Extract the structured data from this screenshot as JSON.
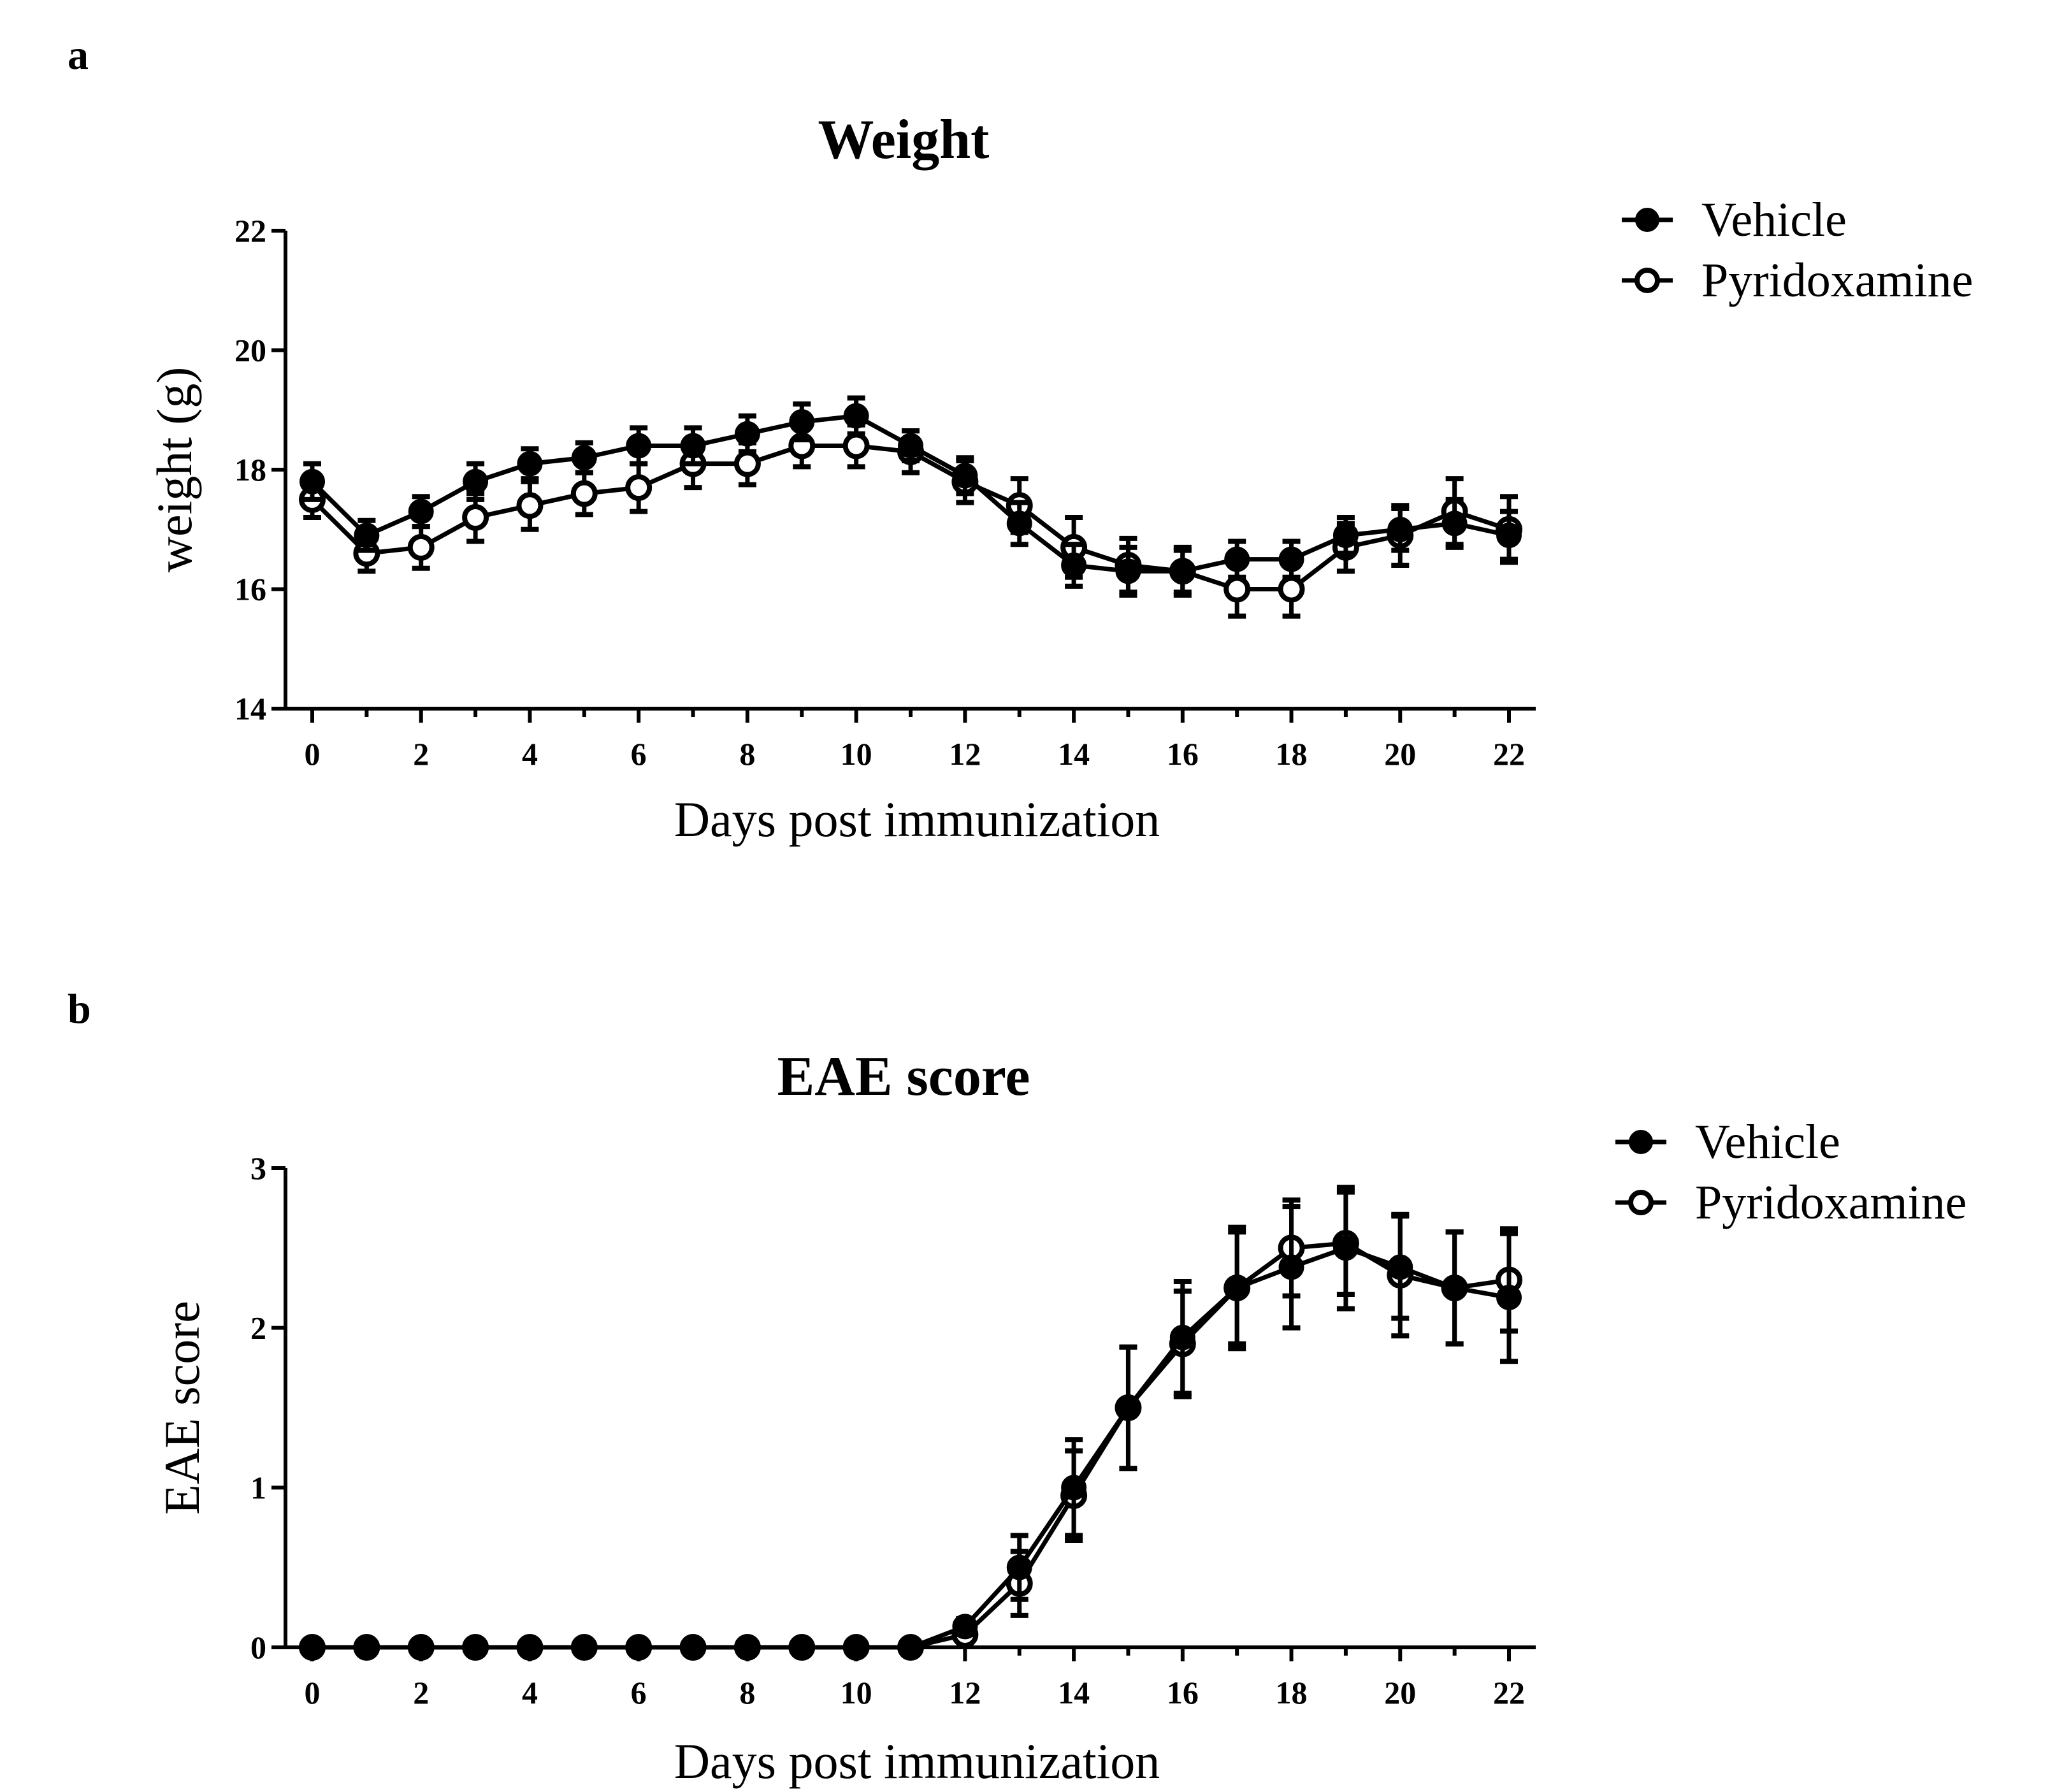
{
  "figure": {
    "panels": [
      "a",
      "b"
    ]
  },
  "chart_data": [
    {
      "type": "line",
      "panel": "a",
      "title": "Weight",
      "xlabel": "Days post immunization",
      "ylabel": "weight (g)",
      "xlim": [
        0,
        22
      ],
      "ylim": [
        14,
        22
      ],
      "xticks": [
        0,
        2,
        4,
        6,
        8,
        10,
        12,
        14,
        16,
        18,
        20,
        22
      ],
      "yticks": [
        14,
        16,
        18,
        20,
        22
      ],
      "grid": false,
      "legend": "top-right outside",
      "x": [
        0,
        1,
        2,
        3,
        4,
        5,
        6,
        7,
        8,
        9,
        10,
        11,
        12,
        13,
        14,
        15,
        16,
        17,
        18,
        19,
        20,
        21,
        22
      ],
      "series": [
        {
          "name": "Vehicle",
          "marker": "filled-circle",
          "values": [
            17.8,
            16.9,
            17.3,
            17.8,
            18.1,
            18.2,
            18.4,
            18.4,
            18.6,
            18.8,
            18.9,
            18.4,
            17.9,
            17.1,
            16.4,
            16.3,
            16.3,
            16.5,
            16.5,
            16.9,
            17.0,
            17.1,
            16.9
          ],
          "error": [
            0.3,
            0.25,
            0.25,
            0.3,
            0.25,
            0.25,
            0.3,
            0.3,
            0.3,
            0.3,
            0.3,
            0.25,
            0.3,
            0.35,
            0.35,
            0.4,
            0.35,
            0.3,
            0.3,
            0.3,
            0.35,
            0.4,
            0.4
          ]
        },
        {
          "name": "Pyridoxamine",
          "marker": "open-circle",
          "values": [
            17.5,
            16.6,
            16.7,
            17.2,
            17.4,
            17.6,
            17.7,
            18.1,
            18.1,
            18.4,
            18.4,
            18.3,
            17.8,
            17.4,
            16.7,
            16.4,
            16.3,
            16.0,
            16.0,
            16.7,
            16.9,
            17.3,
            17.0
          ],
          "error": [
            0.3,
            0.3,
            0.35,
            0.4,
            0.4,
            0.35,
            0.4,
            0.4,
            0.35,
            0.35,
            0.35,
            0.35,
            0.35,
            0.45,
            0.5,
            0.45,
            0.4,
            0.45,
            0.45,
            0.4,
            0.5,
            0.55,
            0.55
          ]
        }
      ]
    },
    {
      "type": "line",
      "panel": "b",
      "title": "EAE score",
      "xlabel": "Days post immunization",
      "ylabel": "EAE score",
      "xlim": [
        0,
        22
      ],
      "ylim": [
        0,
        3
      ],
      "xticks": [
        0,
        2,
        4,
        6,
        8,
        10,
        12,
        14,
        16,
        18,
        20,
        22
      ],
      "yticks": [
        0,
        1,
        2,
        3
      ],
      "grid": false,
      "legend": "top-right outside",
      "x": [
        0,
        1,
        2,
        3,
        4,
        5,
        6,
        7,
        8,
        9,
        10,
        11,
        12,
        13,
        14,
        15,
        16,
        17,
        18,
        19,
        20,
        21,
        22
      ],
      "series": [
        {
          "name": "Vehicle",
          "marker": "filled-circle",
          "values": [
            0,
            0,
            0,
            0,
            0,
            0,
            0,
            0,
            0,
            0,
            0,
            0,
            0.13,
            0.5,
            1.0,
            1.5,
            1.94,
            2.25,
            2.38,
            2.5,
            2.38,
            2.25,
            2.19
          ],
          "error": [
            0,
            0,
            0,
            0,
            0,
            0,
            0,
            0,
            0,
            0,
            0,
            0,
            0.05,
            0.2,
            0.3,
            0.38,
            0.35,
            0.35,
            0.38,
            0.38,
            0.32,
            0.35,
            0.4
          ]
        },
        {
          "name": "Pyridoxamine",
          "marker": "open-circle",
          "values": [
            0,
            0,
            0,
            0,
            0,
            0,
            0,
            0,
            0,
            0,
            0,
            0,
            0.08,
            0.4,
            0.95,
            1.5,
            1.9,
            2.25,
            2.5,
            2.53,
            2.33,
            2.25,
            2.3
          ],
          "error": [
            0,
            0,
            0,
            0,
            0,
            0,
            0,
            0,
            0,
            0,
            0,
            0,
            0.05,
            0.2,
            0.28,
            0.38,
            0.33,
            0.38,
            0.3,
            0.32,
            0.38,
            0.35,
            0.32
          ]
        }
      ]
    }
  ]
}
